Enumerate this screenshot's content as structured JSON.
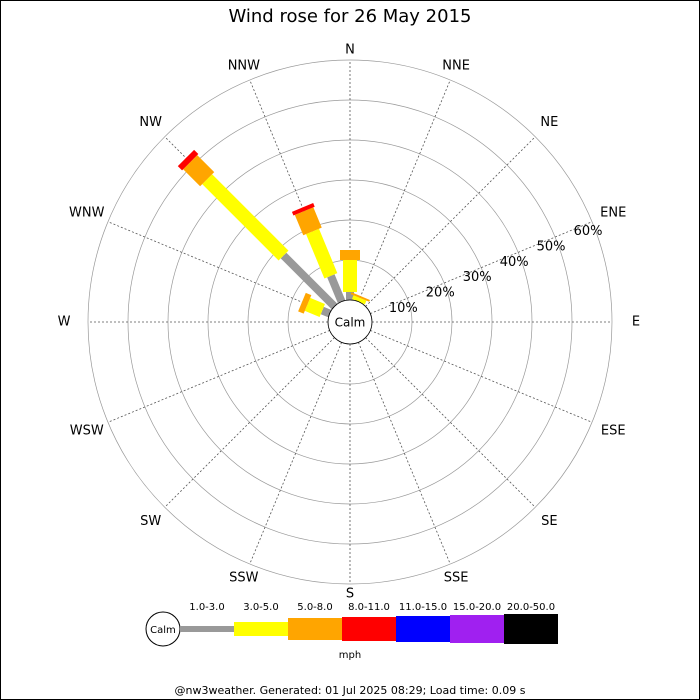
{
  "chart_data": {
    "type": "windrose",
    "title": "Wind rose for 26 May 2015",
    "categories": [
      "N",
      "NNE",
      "NE",
      "ENE",
      "E",
      "ESE",
      "SE",
      "SSE",
      "S",
      "SSW",
      "SW",
      "WSW",
      "W",
      "WNW",
      "NW",
      "NNW"
    ],
    "calm_label": "Calm",
    "rlim": [
      0,
      60
    ],
    "rticks": [
      {
        "value": 10,
        "label": "10%"
      },
      {
        "value": 20,
        "label": "20%"
      },
      {
        "value": 30,
        "label": "30%"
      },
      {
        "value": 40,
        "label": "40%"
      },
      {
        "value": 50,
        "label": "50%"
      },
      {
        "value": 60,
        "label": "60%"
      }
    ],
    "series": [
      {
        "name": "1.0-3.0",
        "color": "#999999",
        "values": [
          2,
          0,
          0,
          0,
          0,
          0,
          0,
          0,
          0,
          0,
          0,
          0,
          0,
          2,
          18,
          7
        ]
      },
      {
        "name": "3.0-5.0",
        "color": "#ffff00",
        "values": [
          8,
          1,
          0,
          0,
          0,
          0,
          0,
          0,
          0,
          0,
          0,
          0,
          0,
          4,
          27,
          12
        ]
      },
      {
        "name": "5.0-8.0",
        "color": "#ffa500",
        "values": [
          2.5,
          0.5,
          0,
          0,
          0,
          0,
          0,
          0,
          0,
          0,
          0,
          0,
          0,
          1.5,
          6,
          5.5
        ]
      },
      {
        "name": "8.0-11.0",
        "color": "#ff0000",
        "values": [
          0,
          0,
          0,
          0,
          0,
          0,
          0,
          0,
          0,
          0,
          0,
          0,
          0,
          0,
          1.5,
          1
        ]
      },
      {
        "name": "11.0-15.0",
        "color": "#0000ff",
        "values": [
          0,
          0,
          0,
          0,
          0,
          0,
          0,
          0,
          0,
          0,
          0,
          0,
          0,
          0,
          0,
          0
        ]
      },
      {
        "name": "15.0-20.0",
        "color": "#a020f0",
        "values": [
          0,
          0,
          0,
          0,
          0,
          0,
          0,
          0,
          0,
          0,
          0,
          0,
          0,
          0,
          0,
          0
        ]
      },
      {
        "name": "20.0-50.0",
        "color": "#000000",
        "values": [
          0,
          0,
          0,
          0,
          0,
          0,
          0,
          0,
          0,
          0,
          0,
          0,
          0,
          0,
          0,
          0
        ]
      }
    ],
    "unit_label": "mph",
    "footer": "@nw3weather. Generated: 01 Jul 2025 08:29; Load time: 0.09 s"
  }
}
